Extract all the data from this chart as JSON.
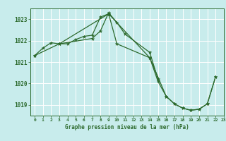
{
  "background_color": "#c8ecec",
  "grid_color": "#ffffff",
  "line_color": "#2d6a2d",
  "title": "Graphe pression niveau de la mer (hPa)",
  "title_color": "#2d6a2d",
  "xlim": [
    -0.5,
    23
  ],
  "ylim": [
    1018.5,
    1023.5
  ],
  "yticks": [
    1019,
    1020,
    1021,
    1022,
    1023
  ],
  "xtick_labels": [
    "0",
    "1",
    "2",
    "3",
    "4",
    "5",
    "6",
    "7",
    "8",
    "9",
    "10",
    "11",
    "12",
    "13",
    "14",
    "15",
    "16",
    "17",
    "18",
    "19",
    "20",
    "21",
    "22",
    "23"
  ],
  "line1_x": [
    0,
    1,
    2,
    3,
    4,
    5,
    6,
    7,
    8,
    9,
    10,
    14,
    15,
    16,
    17,
    18,
    19,
    20,
    21,
    22
  ],
  "line1_y": [
    1021.3,
    1021.65,
    1021.9,
    1021.85,
    1021.85,
    1022.05,
    1022.2,
    1022.25,
    1023.1,
    1023.25,
    1021.85,
    1021.2,
    1020.1,
    1019.4,
    1019.05,
    1018.85,
    1018.75,
    1018.8,
    1019.05,
    1020.3
  ],
  "line2_x": [
    3,
    7,
    8,
    9,
    10,
    11,
    14,
    15
  ],
  "line2_y": [
    1021.85,
    1022.1,
    1022.45,
    1023.3,
    1022.85,
    1022.3,
    1021.45,
    1020.2
  ],
  "line3_x": [
    0,
    3,
    9,
    14,
    16,
    17,
    18,
    19,
    20,
    21,
    22
  ],
  "line3_y": [
    1021.3,
    1021.85,
    1023.25,
    1021.2,
    1019.4,
    1019.05,
    1018.85,
    1018.75,
    1018.8,
    1019.05,
    1020.3
  ]
}
